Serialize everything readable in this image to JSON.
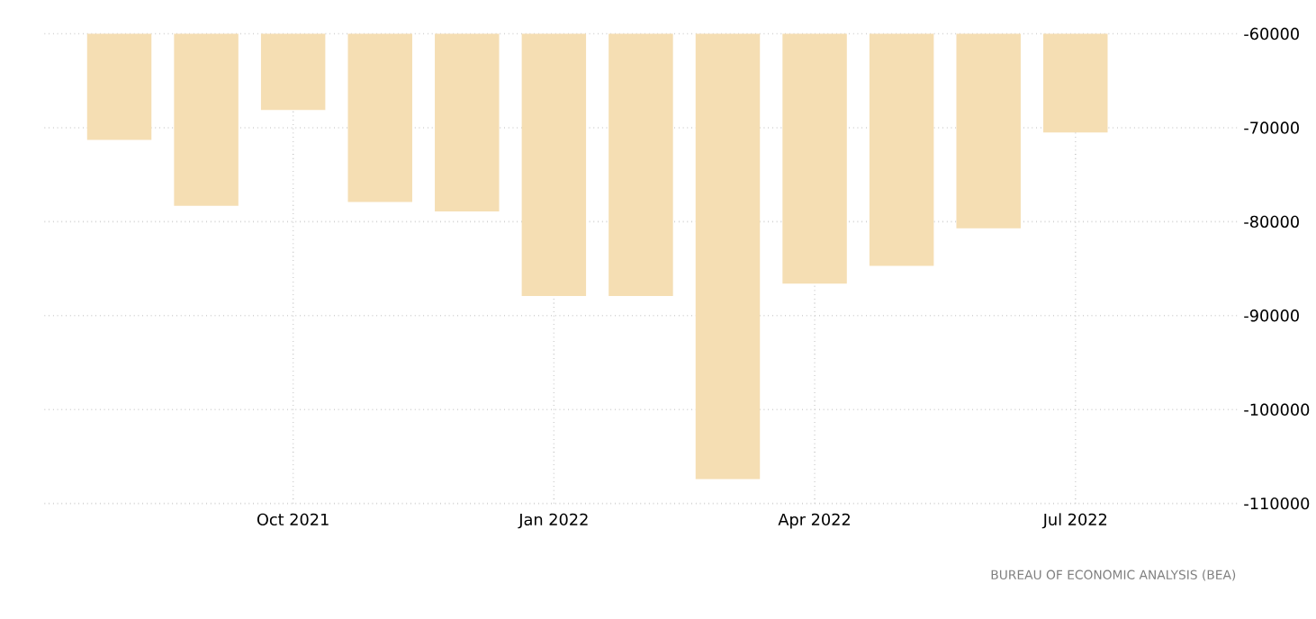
{
  "chart_data": {
    "type": "bar",
    "categories": [
      null,
      null,
      "Oct 2021",
      null,
      null,
      "Jan 2022",
      null,
      null,
      "Apr 2022",
      null,
      null,
      "Jul 2022",
      null
    ],
    "values": [
      -71300,
      -78300,
      -68100,
      -77900,
      -78900,
      -87900,
      -87900,
      -107400,
      -86600,
      -84700,
      -80700,
      -70500,
      null
    ],
    "color": "#f5deb3",
    "ylim": [
      -110000,
      -60000
    ],
    "yticks": [
      -110000,
      -100000,
      -90000,
      -80000,
      -70000,
      -60000
    ],
    "grid": true,
    "annotations": [
      "BUREAU OF ECONOMIC ANALYSIS (BEA)"
    ]
  }
}
